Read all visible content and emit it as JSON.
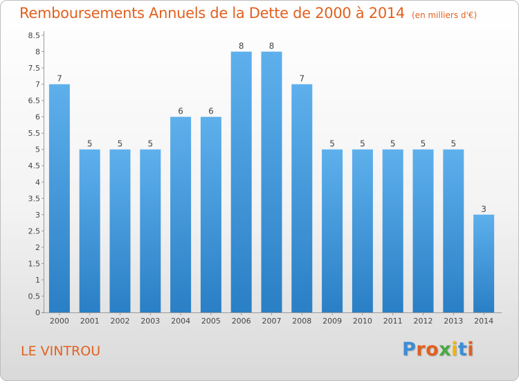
{
  "header": {
    "title": "Remboursements Annuels de la Dette de 2000 à 2014",
    "unit": "(en milliers d'€)"
  },
  "footer": {
    "commune": "LE VINTROU",
    "brand": "Proxiti"
  },
  "colors": {
    "title": "#e2601f",
    "bar_top": "#5eb0ec",
    "bar_bottom": "#2a7fc5",
    "logo_letters": [
      "#3c8dd6",
      "#e2601f",
      "#e2601f",
      "#49a942",
      "#f3b400",
      "#3c8dd6",
      "#e2601f"
    ]
  },
  "chart_data": {
    "type": "bar",
    "categories": [
      "2000",
      "2001",
      "2002",
      "2003",
      "2004",
      "2005",
      "2006",
      "2007",
      "2008",
      "2009",
      "2010",
      "2011",
      "2012",
      "2013",
      "2014"
    ],
    "values": [
      7,
      5,
      5,
      5,
      6,
      6,
      8,
      8,
      7,
      5,
      5,
      5,
      5,
      5,
      3
    ],
    "data_labels": [
      "7",
      "5",
      "5",
      "5",
      "6",
      "6",
      "8",
      "8",
      "7",
      "5",
      "5",
      "5",
      "5",
      "5",
      "3"
    ],
    "y_ticks": [
      "0",
      "0.5",
      "1",
      "1.5",
      "2",
      "2.5",
      "3",
      "3.5",
      "4",
      "4.5",
      "5",
      "5.5",
      "6",
      "6.5",
      "7",
      "7.5",
      "8",
      "8.5"
    ],
    "ylim": [
      0,
      8.5
    ],
    "grid": false,
    "legend": "none"
  }
}
